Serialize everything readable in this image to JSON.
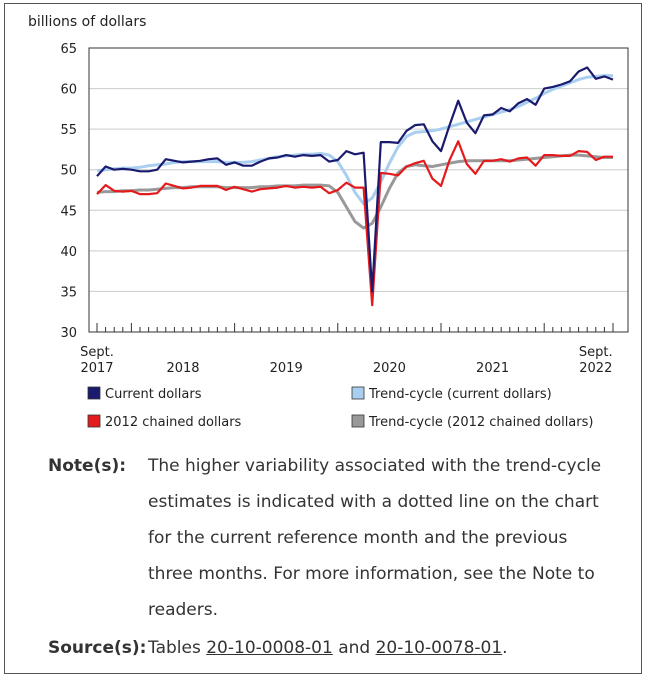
{
  "chart_data": {
    "type": "line",
    "ylabel": "billions of dollars",
    "ylim": [
      30,
      65
    ],
    "yticks": [
      30,
      35,
      40,
      45,
      50,
      55,
      60,
      65
    ],
    "x_start": "2017-09",
    "x_end": "2022-09",
    "x_tick_labels": [
      {
        "line1": "Sept.",
        "line2": "2017"
      },
      {
        "line1": "2018",
        "line2": ""
      },
      {
        "line1": "2019",
        "line2": ""
      },
      {
        "line1": "2020",
        "line2": ""
      },
      {
        "line1": "2021",
        "line2": ""
      },
      {
        "line1": "Sept.",
        "line2": "2022"
      }
    ],
    "x": [
      "2017-09",
      "2017-10",
      "2017-11",
      "2017-12",
      "2018-01",
      "2018-02",
      "2018-03",
      "2018-04",
      "2018-05",
      "2018-06",
      "2018-07",
      "2018-08",
      "2018-09",
      "2018-10",
      "2018-11",
      "2018-12",
      "2019-01",
      "2019-02",
      "2019-03",
      "2019-04",
      "2019-05",
      "2019-06",
      "2019-07",
      "2019-08",
      "2019-09",
      "2019-10",
      "2019-11",
      "2019-12",
      "2020-01",
      "2020-02",
      "2020-03",
      "2020-04",
      "2020-05",
      "2020-06",
      "2020-07",
      "2020-08",
      "2020-09",
      "2020-10",
      "2020-11",
      "2020-12",
      "2021-01",
      "2021-02",
      "2021-03",
      "2021-04",
      "2021-05",
      "2021-06",
      "2021-07",
      "2021-08",
      "2021-09",
      "2021-10",
      "2021-11",
      "2021-12",
      "2022-01",
      "2022-02",
      "2022-03",
      "2022-04",
      "2022-05",
      "2022-06",
      "2022-07",
      "2022-08",
      "2022-09"
    ],
    "series": [
      {
        "name": "Current dollars",
        "color": "#1a1a6e",
        "style": "solid",
        "values": [
          49.2,
          50.4,
          50.0,
          50.1,
          50.0,
          49.8,
          49.8,
          50.0,
          51.3,
          51.1,
          50.9,
          51.0,
          51.1,
          51.3,
          51.4,
          50.6,
          50.9,
          50.5,
          50.5,
          51.0,
          51.4,
          51.5,
          51.8,
          51.6,
          51.8,
          51.7,
          51.8,
          51.0,
          51.2,
          52.3,
          51.9,
          52.1,
          35.0,
          53.4,
          53.4,
          53.3,
          54.8,
          55.5,
          55.6,
          53.5,
          52.3,
          55.5,
          58.5,
          55.8,
          54.5,
          56.7,
          56.8,
          57.6,
          57.2,
          58.2,
          58.7,
          58.0,
          60.0,
          60.2,
          60.5,
          60.9,
          62.1,
          62.6,
          61.2,
          61.5,
          61.1
        ]
      },
      {
        "name": "Trend-cycle (current dollars)",
        "color": "#a9cef0",
        "style": "solid",
        "values": [
          49.9,
          50.0,
          50.1,
          50.2,
          50.2,
          50.3,
          50.5,
          50.6,
          50.7,
          50.9,
          51.0,
          51.0,
          51.0,
          51.0,
          51.0,
          50.9,
          50.9,
          50.9,
          51.0,
          51.2,
          51.4,
          51.6,
          51.7,
          51.8,
          51.9,
          51.9,
          52.0,
          51.8,
          51.0,
          49.3,
          47.2,
          45.8,
          46.5,
          48.5,
          50.8,
          52.8,
          54.1,
          54.6,
          54.7,
          54.8,
          55.0,
          55.3,
          55.6,
          55.9,
          56.2,
          56.5,
          56.8,
          57.1,
          57.4,
          57.8,
          58.3,
          58.8,
          59.4,
          59.9,
          60.3,
          60.7,
          61.1,
          61.4,
          61.5,
          61.6,
          61.6
        ]
      },
      {
        "name": "2012 chained dollars",
        "color": "#e41a1c",
        "style": "solid",
        "values": [
          47.0,
          48.1,
          47.4,
          47.3,
          47.4,
          47.0,
          47.0,
          47.1,
          48.3,
          48.0,
          47.7,
          47.8,
          48.0,
          48.0,
          48.0,
          47.5,
          47.9,
          47.6,
          47.3,
          47.6,
          47.7,
          47.8,
          48.0,
          47.8,
          47.9,
          47.8,
          47.9,
          47.1,
          47.5,
          48.4,
          47.8,
          47.8,
          33.3,
          49.6,
          49.5,
          49.3,
          50.4,
          50.8,
          51.1,
          48.9,
          48.0,
          51.2,
          53.5,
          50.7,
          49.5,
          51.1,
          51.1,
          51.3,
          51.0,
          51.4,
          51.5,
          50.5,
          51.8,
          51.8,
          51.7,
          51.7,
          52.3,
          52.2,
          51.2,
          51.6,
          51.6
        ]
      },
      {
        "name": "Trend-cycle (2012 chained dollars)",
        "color": "#999999",
        "style": "solid",
        "values": [
          47.2,
          47.3,
          47.3,
          47.4,
          47.4,
          47.5,
          47.5,
          47.6,
          47.7,
          47.8,
          47.8,
          47.9,
          47.9,
          47.9,
          47.9,
          47.8,
          47.8,
          47.8,
          47.8,
          47.9,
          47.9,
          48.0,
          48.0,
          48.0,
          48.1,
          48.1,
          48.1,
          48.0,
          47.2,
          45.4,
          43.6,
          42.8,
          43.4,
          45.4,
          47.7,
          49.6,
          50.4,
          50.6,
          50.5,
          50.4,
          50.6,
          50.8,
          51.0,
          51.1,
          51.1,
          51.1,
          51.1,
          51.1,
          51.1,
          51.2,
          51.3,
          51.4,
          51.5,
          51.6,
          51.7,
          51.8,
          51.8,
          51.7,
          51.6,
          51.5,
          51.5
        ]
      }
    ],
    "legend": [
      {
        "label": "Current dollars",
        "color": "#1a1a6e"
      },
      {
        "label": "Trend-cycle (current dollars)",
        "color": "#a9cef0"
      },
      {
        "label": "2012 chained dollars",
        "color": "#e41a1c"
      },
      {
        "label": "Trend-cycle (2012 chained dollars)",
        "color": "#999999"
      }
    ],
    "legend_position": "bottom",
    "grid": "horizontal"
  },
  "notes": {
    "note_label": "Note(s):",
    "note_lines": [
      "The higher variability associated with the trend-cycle",
      "estimates is indicated with a dotted line on the chart",
      "for the current reference month and the previous",
      "three months. For more information, see the Note to",
      "readers."
    ],
    "source_label": "Source(s):",
    "source_prefix": "Tables ",
    "source_link1": "20-10-0008-01",
    "source_mid": " and ",
    "source_link2": "20-10-0078-01",
    "source_suffix": "."
  }
}
